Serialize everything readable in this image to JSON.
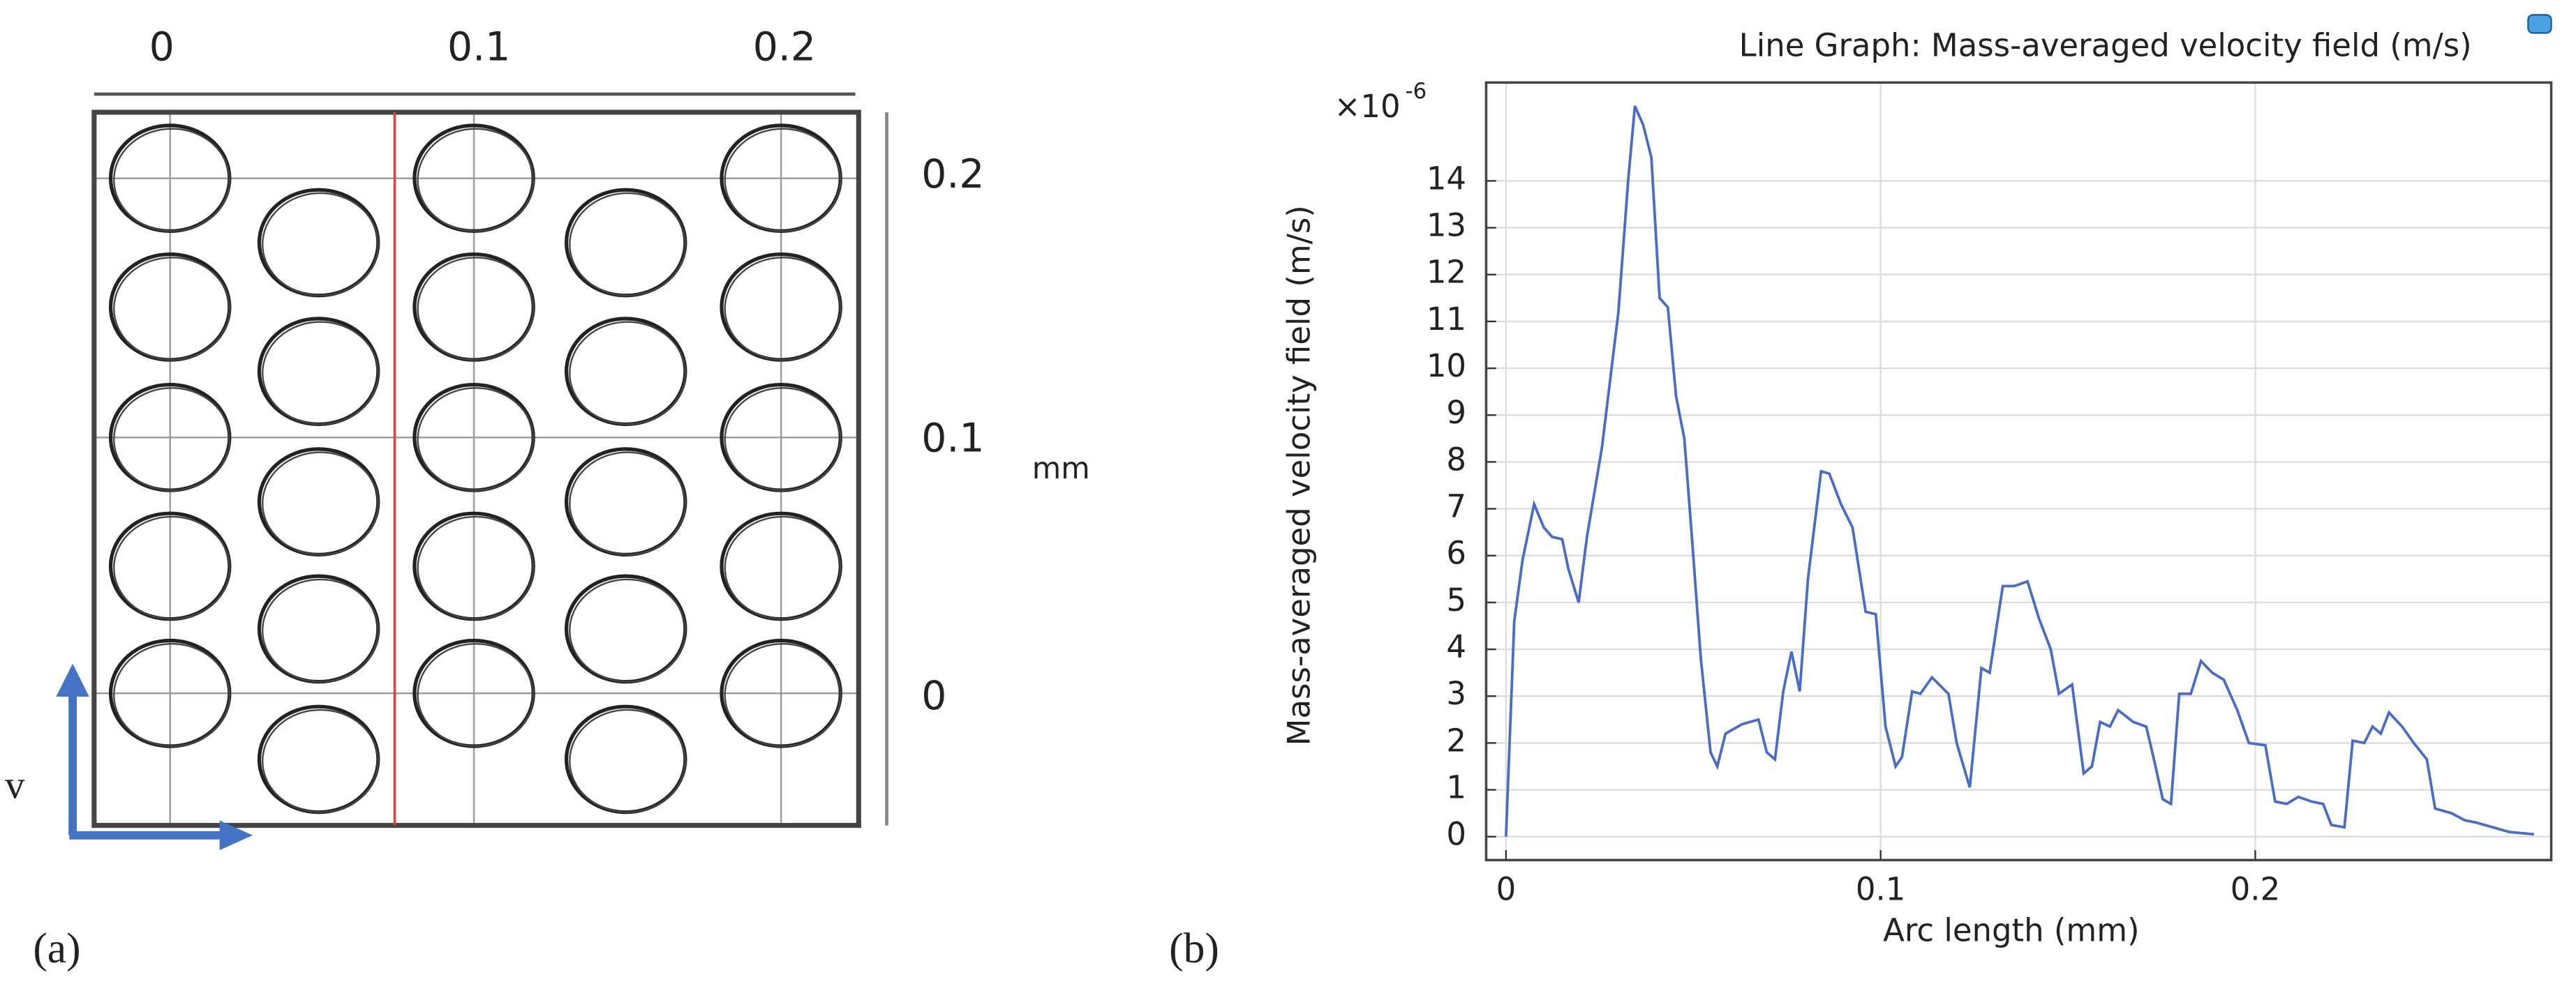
{
  "panel_a": {
    "top_ticks": [
      "0",
      "0.1",
      "0.2"
    ],
    "right_ticks": [
      "0.2",
      "0.1",
      "0"
    ],
    "unit": "mm",
    "axis_letter": "v",
    "label": "(a)"
  },
  "panel_b_label": "(b)",
  "chart_data": {
    "type": "line",
    "title": "Line Graph: Mass-averaged velocity field (m/s)",
    "x_label": "Arc length (mm)",
    "y_label": "Mass-averaged velocity field (m/s)",
    "y_multiplier": "×10",
    "y_multiplier_exponent": "-6",
    "color": "#4a6cc4",
    "grid": true,
    "xlim": [
      -0.0053,
      0.279
    ],
    "ylim": [
      -0.5,
      16.1
    ],
    "xticks": [
      0,
      0.1,
      0.2
    ],
    "yticks": [
      0,
      1,
      2,
      3,
      4,
      5,
      6,
      7,
      8,
      9,
      10,
      11,
      12,
      13,
      14
    ],
    "x": [
      0,
      0.0022,
      0.0044,
      0.0075,
      0.0101,
      0.0123,
      0.015,
      0.0167,
      0.0194,
      0.0216,
      0.0256,
      0.03,
      0.0326,
      0.0344,
      0.0366,
      0.0388,
      0.041,
      0.0432,
      0.0454,
      0.0476,
      0.0498,
      0.052,
      0.0546,
      0.0564,
      0.0586,
      0.063,
      0.0674,
      0.0696,
      0.0718,
      0.074,
      0.0762,
      0.0784,
      0.0806,
      0.0841,
      0.0863,
      0.0894,
      0.0925,
      0.096,
      0.0987,
      0.1013,
      0.104,
      0.1057,
      0.1084,
      0.1106,
      0.1137,
      0.1181,
      0.1203,
      0.1238,
      0.1269,
      0.1291,
      0.1326,
      0.1357,
      0.1392,
      0.1423,
      0.1454,
      0.1476,
      0.1511,
      0.1542,
      0.1564,
      0.1586,
      0.1612,
      0.1634,
      0.1674,
      0.1709,
      0.1731,
      0.1753,
      0.1775,
      0.1797,
      0.1828,
      0.1855,
      0.1885,
      0.1916,
      0.1952,
      0.1983,
      0.2027,
      0.2053,
      0.2084,
      0.2115,
      0.215,
      0.2181,
      0.2203,
      0.2238,
      0.226,
      0.2291,
      0.2313,
      0.2335,
      0.2357,
      0.2392,
      0.2423,
      0.2458,
      0.248,
      0.2524,
      0.2559,
      0.259,
      0.2634,
      0.2678,
      0.2744
    ],
    "values": [
      0,
      4.6,
      5.9,
      7.1,
      6.6,
      6.4,
      6.35,
      5.7,
      5.0,
      6.4,
      8.3,
      11.2,
      14.0,
      15.6,
      15.2,
      14.5,
      11.5,
      11.3,
      9.4,
      8.5,
      6.2,
      3.8,
      1.8,
      1.5,
      2.2,
      2.4,
      2.5,
      1.8,
      1.65,
      3.1,
      3.95,
      3.1,
      5.5,
      7.8,
      7.75,
      7.1,
      6.6,
      4.8,
      4.75,
      2.35,
      1.5,
      1.7,
      3.1,
      3.05,
      3.4,
      3.05,
      2.0,
      1.05,
      3.6,
      3.5,
      5.35,
      5.35,
      5.45,
      4.65,
      4.0,
      3.05,
      3.25,
      1.35,
      1.5,
      2.45,
      2.35,
      2.7,
      2.45,
      2.35,
      1.6,
      0.8,
      0.7,
      3.05,
      3.05,
      3.75,
      3.5,
      3.35,
      2.7,
      2.0,
      1.95,
      0.75,
      0.7,
      0.85,
      0.75,
      0.7,
      0.25,
      0.2,
      2.05,
      2.0,
      2.35,
      2.2,
      2.65,
      2.35,
      2.0,
      1.65,
      0.6,
      0.5,
      0.35,
      0.3,
      0.2,
      0.1,
      0.05
    ]
  }
}
